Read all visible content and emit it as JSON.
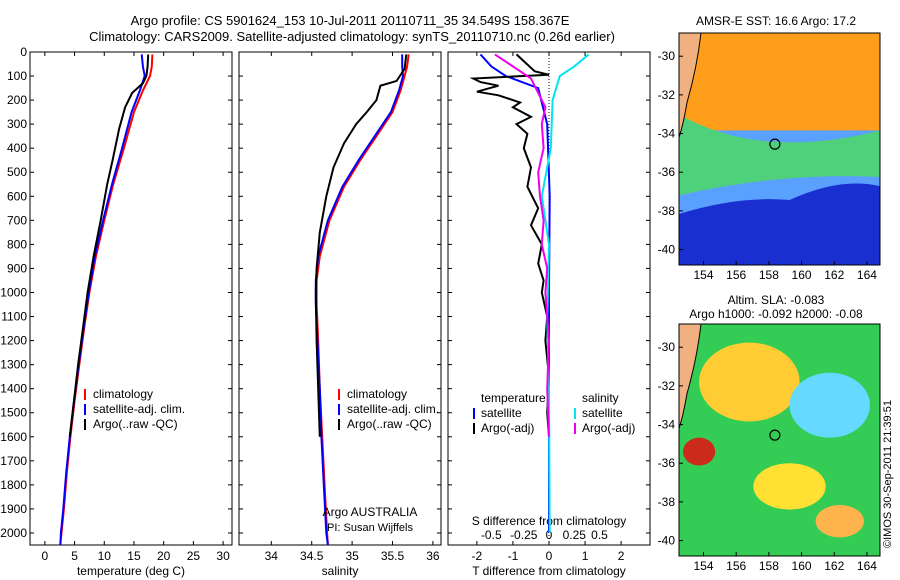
{
  "header": {
    "line1": "Argo profile: CS 5901624_153 10-Jul-2011 20110711_35 34.549S 158.367E",
    "line2": "Climatology: CARS2009. Satellite-adjusted climatology: synTS_20110710.nc (0.26d earlier)"
  },
  "colors": {
    "climatology": "#ff0000",
    "satellite": "#0000ff",
    "argo": "#000000",
    "sal_satellite": "#00e5ee",
    "sal_argo": "#ee00ee"
  },
  "chart_data": [
    {
      "type": "line",
      "title": "",
      "xlabel": "temperature (deg C)",
      "ylabel": "",
      "xlim": [
        -2.5,
        31.5
      ],
      "ylim": [
        2050,
        0
      ],
      "xticks": [
        0,
        5,
        10,
        15,
        20,
        25,
        30
      ],
      "yticks": [
        0,
        100,
        200,
        300,
        400,
        500,
        600,
        700,
        800,
        900,
        1000,
        1100,
        1200,
        1300,
        1400,
        1500,
        1600,
        1700,
        1800,
        1900,
        2000
      ],
      "legend": [
        "climatology",
        "satellite-adj. clim.",
        "Argo(..raw -QC)"
      ],
      "series": [
        {
          "name": "climatology",
          "color": "#ff0000",
          "points": [
            [
              18.1,
              10
            ],
            [
              18,
              60
            ],
            [
              17.7,
              100
            ],
            [
              16.5,
              160
            ],
            [
              15,
              250
            ],
            [
              13.3,
              400
            ],
            [
              11.5,
              550
            ],
            [
              10,
              700
            ],
            [
              8.6,
              850
            ],
            [
              7.5,
              1000
            ],
            [
              6.6,
              1150
            ],
            [
              5.8,
              1300
            ],
            [
              5,
              1450
            ],
            [
              4.3,
              1600
            ],
            [
              3.7,
              1750
            ],
            [
              3.2,
              1900
            ],
            [
              2.8,
              2000
            ],
            [
              2.6,
              2050
            ]
          ]
        },
        {
          "name": "satellite-adj. clim.",
          "color": "#0000ff",
          "points": [
            [
              16.3,
              10
            ],
            [
              16.5,
              60
            ],
            [
              16.8,
              100
            ],
            [
              16,
              160
            ],
            [
              14.6,
              250
            ],
            [
              13,
              400
            ],
            [
              11.3,
              550
            ],
            [
              9.8,
              700
            ],
            [
              8.4,
              850
            ],
            [
              7.4,
              1000
            ],
            [
              6.5,
              1150
            ],
            [
              5.7,
              1300
            ],
            [
              4.9,
              1450
            ],
            [
              4.2,
              1600
            ],
            [
              3.6,
              1750
            ],
            [
              3.1,
              1900
            ],
            [
              2.7,
              2000
            ],
            [
              2.6,
              2050
            ]
          ]
        },
        {
          "name": "Argo",
          "color": "#000000",
          "points": [
            [
              17.4,
              10
            ],
            [
              17.3,
              60
            ],
            [
              17.1,
              100
            ],
            [
              16.5,
              130
            ],
            [
              14.7,
              170
            ],
            [
              13.5,
              230
            ],
            [
              12.5,
              320
            ],
            [
              11.4,
              450
            ],
            [
              10.5,
              550
            ],
            [
              9.4,
              700
            ],
            [
              8.2,
              850
            ],
            [
              7.2,
              1000
            ],
            [
              6.4,
              1150
            ],
            [
              5.6,
              1300
            ],
            [
              4.9,
              1450
            ],
            [
              4.2,
              1600
            ]
          ]
        }
      ]
    },
    {
      "type": "line",
      "title": "",
      "xlabel": "salinity",
      "ylabel": "",
      "xlim": [
        33.6,
        36.1
      ],
      "ylim": [
        2050,
        0
      ],
      "xticks": [
        34,
        34.5,
        35,
        35.5,
        36
      ],
      "legend": [
        "climatology",
        "satellite-adj. clim.",
        "Argo(..raw -QC)"
      ],
      "annotation": [
        "Argo AUSTRALIA",
        "PI: Susan Wijffels"
      ],
      "series": [
        {
          "name": "climatology",
          "color": "#ff0000",
          "points": [
            [
              35.7,
              10
            ],
            [
              35.68,
              60
            ],
            [
              35.65,
              100
            ],
            [
              35.6,
              160
            ],
            [
              35.5,
              250
            ],
            [
              35.3,
              350
            ],
            [
              35.1,
              450
            ],
            [
              34.9,
              560
            ],
            [
              34.72,
              700
            ],
            [
              34.6,
              850
            ],
            [
              34.56,
              950
            ],
            [
              34.56,
              1050
            ],
            [
              34.58,
              1200
            ],
            [
              34.6,
              1400
            ],
            [
              34.63,
              1600
            ],
            [
              34.66,
              1800
            ],
            [
              34.69,
              2000
            ],
            [
              34.7,
              2050
            ]
          ]
        },
        {
          "name": "satellite-adj. clim.",
          "color": "#0000ff",
          "points": [
            [
              35.62,
              10
            ],
            [
              35.62,
              60
            ],
            [
              35.63,
              100
            ],
            [
              35.58,
              160
            ],
            [
              35.48,
              250
            ],
            [
              35.28,
              350
            ],
            [
              35.08,
              450
            ],
            [
              34.88,
              560
            ],
            [
              34.7,
              700
            ],
            [
              34.58,
              850
            ],
            [
              34.55,
              950
            ],
            [
              34.55,
              1050
            ],
            [
              34.57,
              1200
            ],
            [
              34.6,
              1400
            ],
            [
              34.62,
              1600
            ],
            [
              34.65,
              1800
            ],
            [
              34.68,
              2000
            ],
            [
              34.7,
              2050
            ]
          ]
        },
        {
          "name": "Argo",
          "color": "#000000",
          "points": [
            [
              35.67,
              10
            ],
            [
              35.65,
              70
            ],
            [
              35.55,
              120
            ],
            [
              35.35,
              140
            ],
            [
              35.3,
              200
            ],
            [
              35.18,
              250
            ],
            [
              35.05,
              300
            ],
            [
              34.9,
              380
            ],
            [
              34.77,
              480
            ],
            [
              34.68,
              600
            ],
            [
              34.6,
              750
            ],
            [
              34.56,
              900
            ],
            [
              34.55,
              1000
            ],
            [
              34.56,
              1200
            ],
            [
              34.58,
              1400
            ],
            [
              34.6,
              1600
            ]
          ]
        }
      ]
    },
    {
      "type": "line",
      "title": "",
      "xlabel": "T difference from climatology",
      "xlabel_top": "S difference from climatology",
      "ylabel": "",
      "xlim": [
        -2.8,
        2.8
      ],
      "ylim": [
        2050,
        0
      ],
      "xticks_T": [
        -2,
        -1,
        0,
        1,
        2
      ],
      "xticks_S": [
        "-0.5",
        "-0.25",
        "0",
        "0.25",
        "0.5"
      ],
      "legend": [
        "temperature",
        "satellite",
        "Argo(-adj)",
        "salinity",
        "satellite",
        "Argo(-adj)"
      ],
      "series": [
        {
          "name": "T satellite",
          "color": "#0000ff",
          "points": [
            [
              -1.9,
              10
            ],
            [
              -1.6,
              60
            ],
            [
              -1.2,
              100
            ],
            [
              -0.3,
              150
            ],
            [
              -0.05,
              300
            ],
            [
              0.02,
              600
            ],
            [
              0,
              1000
            ],
            [
              0,
              1500
            ],
            [
              0,
              2000
            ]
          ]
        },
        {
          "name": "T Argo(-adj)",
          "color": "#000000",
          "points": [
            [
              -0.9,
              10
            ],
            [
              -0.4,
              80
            ],
            [
              0,
              95
            ],
            [
              -2.1,
              110
            ],
            [
              -1.9,
              125
            ],
            [
              -1.4,
              140
            ],
            [
              -2,
              165
            ],
            [
              -1.4,
              180
            ],
            [
              -0.8,
              210
            ],
            [
              -1,
              230
            ],
            [
              -0.5,
              270
            ],
            [
              -0.9,
              300
            ],
            [
              -0.6,
              340
            ],
            [
              -0.7,
              400
            ],
            [
              -0.5,
              480
            ],
            [
              -0.6,
              560
            ],
            [
              -0.3,
              650
            ],
            [
              -0.5,
              720
            ],
            [
              -0.2,
              800
            ],
            [
              -0.3,
              880
            ],
            [
              -0.15,
              950
            ],
            [
              -0.2,
              1000
            ],
            [
              -0.05,
              1100
            ],
            [
              -0.1,
              1200
            ],
            [
              0,
              1350
            ],
            [
              -0.05,
              1500
            ],
            [
              0,
              1600
            ]
          ]
        },
        {
          "name": "S satellite",
          "color": "#00e5ee",
          "points": [
            [
              1.1,
              10
            ],
            [
              0.7,
              60
            ],
            [
              0.3,
              100
            ],
            [
              0.1,
              200
            ],
            [
              0.05,
              400
            ],
            [
              -0.2,
              600
            ],
            [
              0,
              800
            ],
            [
              -0.05,
              1100
            ],
            [
              0,
              1400
            ],
            [
              0.02,
              2000
            ]
          ]
        },
        {
          "name": "S Argo(-adj)",
          "color": "#ee00ee",
          "points": [
            [
              -1.5,
              10
            ],
            [
              -0.8,
              80
            ],
            [
              -0.5,
              110
            ],
            [
              -0.3,
              170
            ],
            [
              -0.1,
              230
            ],
            [
              -0.2,
              300
            ],
            [
              -0.15,
              400
            ],
            [
              -0.3,
              500
            ],
            [
              -0.25,
              600
            ],
            [
              -0.15,
              700
            ],
            [
              -0.2,
              800
            ],
            [
              -0.05,
              900
            ],
            [
              -0.1,
              1000
            ],
            [
              0,
              1200
            ],
            [
              -0.05,
              1400
            ],
            [
              0,
              1600
            ]
          ]
        }
      ]
    },
    {
      "type": "heatmap",
      "title": "AMSR-E SST: 16.6 Argo: 17.2",
      "xticks": [
        154,
        156,
        158,
        160,
        162,
        164
      ],
      "yticks": [
        -30,
        -32,
        -34,
        -36,
        -38,
        -40
      ],
      "xlim": [
        152.5,
        164.8
      ],
      "ylim": [
        -40.8,
        -28.8
      ],
      "marker": [
        158.367,
        -34.549
      ]
    },
    {
      "type": "heatmap",
      "title": "Altim. SLA: -0.083",
      "title2": "Argo h1000: -0.092 h2000: -0.08",
      "xticks": [
        154,
        156,
        158,
        160,
        162,
        164
      ],
      "yticks": [
        -30,
        -32,
        -34,
        -36,
        -38,
        -40
      ],
      "xlim": [
        152.5,
        164.8
      ],
      "ylim": [
        -40.8,
        -28.8
      ],
      "marker": [
        158.367,
        -34.549
      ]
    }
  ],
  "footer": {
    "vertical": "©IMOS 30-Sep-2011 21:39:51"
  }
}
